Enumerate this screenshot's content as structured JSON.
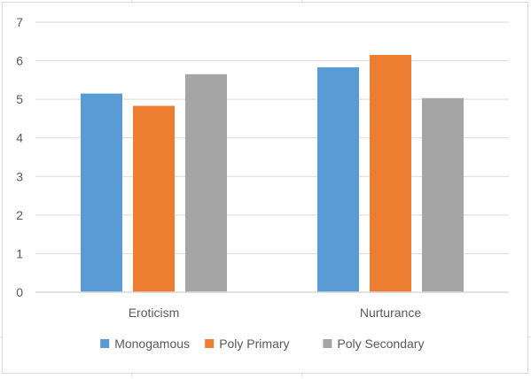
{
  "chart_data": {
    "type": "bar",
    "title": "",
    "xlabel": "",
    "ylabel": "",
    "categories": [
      "Eroticism",
      "Nurturance"
    ],
    "series": [
      {
        "name": "Monogamous",
        "values": [
          5.15,
          5.83
        ],
        "color": "#5b9bd5"
      },
      {
        "name": "Poly Primary",
        "values": [
          4.83,
          6.15
        ],
        "color": "#ed7d31"
      },
      {
        "name": "Poly Secondary",
        "values": [
          5.65,
          5.03
        ],
        "color": "#a5a5a5"
      }
    ],
    "ylim": [
      0,
      7
    ],
    "yticks": [
      0,
      1,
      2,
      3,
      4,
      5,
      6,
      7
    ],
    "grid": true,
    "legend": "bottom",
    "gridline_color": "#d9d9d9",
    "axis_text_color": "#595959"
  }
}
